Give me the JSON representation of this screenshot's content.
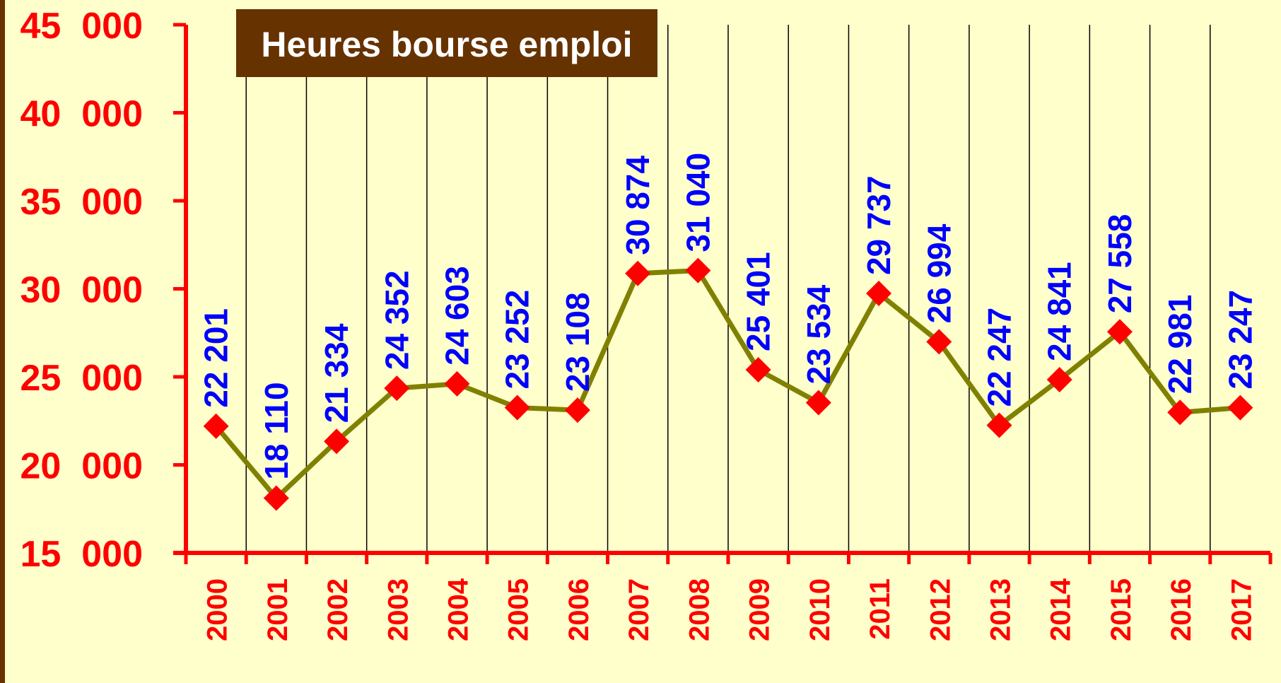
{
  "chart_data": {
    "type": "line",
    "title": "Heures bourse emploi",
    "categories": [
      "2000",
      "2001",
      "2002",
      "2003",
      "2004",
      "2005",
      "2006",
      "2007",
      "2008",
      "2009",
      "2010",
      "2011",
      "2012",
      "2013",
      "2014",
      "2015",
      "2016",
      "2017"
    ],
    "series": [
      {
        "color": "#808000",
        "marker_color": "#ff0000",
        "values": [
          22201,
          18110,
          21334,
          24352,
          24603,
          23252,
          23108,
          30874,
          31040,
          25401,
          23534,
          29737,
          26994,
          22247,
          24841,
          27558,
          22981,
          23247
        ],
        "value_labels": [
          "22 201",
          "18 110",
          "21 334",
          "24 352",
          "24 603",
          "23 252",
          "23 108",
          "30 874",
          "31 040",
          "25 401",
          "23 534",
          "29 737",
          "26 994",
          "22 247",
          "24 841",
          "27 558",
          "22 981",
          "23 247"
        ],
        "label_color": "#0000ff"
      }
    ],
    "ylim": [
      15000,
      45000
    ],
    "yticks": [
      {
        "value": 15000,
        "label": "15  000"
      },
      {
        "value": 20000,
        "label": "20  000"
      },
      {
        "value": 25000,
        "label": "25  000"
      },
      {
        "value": 30000,
        "label": "30  000"
      },
      {
        "value": 35000,
        "label": "35  000"
      },
      {
        "value": 40000,
        "label": "40  000"
      },
      {
        "value": 45000,
        "label": "45  000"
      }
    ],
    "axis_color": "#ff0000",
    "grid": true
  }
}
